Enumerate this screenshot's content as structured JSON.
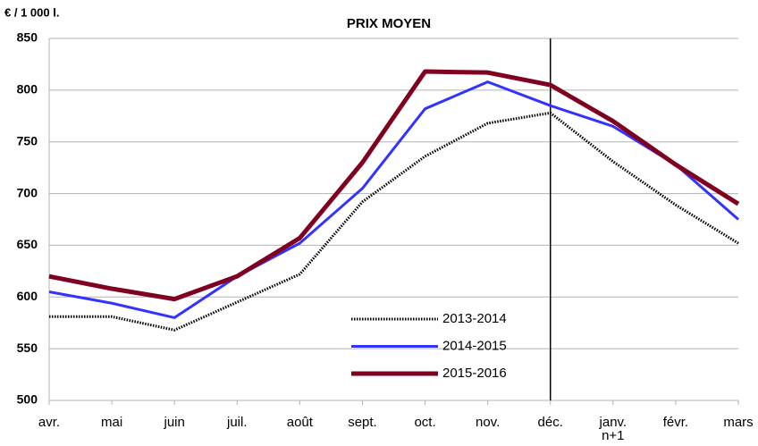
{
  "chart_data": {
    "type": "line",
    "title": "PRIX MOYEN",
    "y_label": "€ / 1 000 l.",
    "categories": [
      "avr.",
      "mai",
      "juin",
      "juil.",
      "août",
      "sept.",
      "oct.",
      "nov.",
      "déc.",
      "janv.\nn+1",
      "févr.",
      "mars"
    ],
    "series": [
      {
        "name": "2013-2014",
        "color": "#000000",
        "values": [
          581,
          581,
          568,
          595,
          622,
          692,
          736,
          768,
          778,
          731,
          689,
          652
        ]
      },
      {
        "name": "2014-2015",
        "color": "#3333ff",
        "values": [
          605,
          594,
          580,
          620,
          652,
          705,
          782,
          808,
          785,
          765,
          728,
          675
        ]
      },
      {
        "name": "2015-2016",
        "color": "#800020",
        "values": [
          620,
          608,
          598,
          620,
          657,
          730,
          818,
          817,
          805,
          770,
          728,
          690
        ]
      }
    ],
    "ylim": [
      500,
      850
    ],
    "yticks": [
      500,
      550,
      600,
      650,
      700,
      750,
      800,
      850
    ],
    "grid": true
  }
}
